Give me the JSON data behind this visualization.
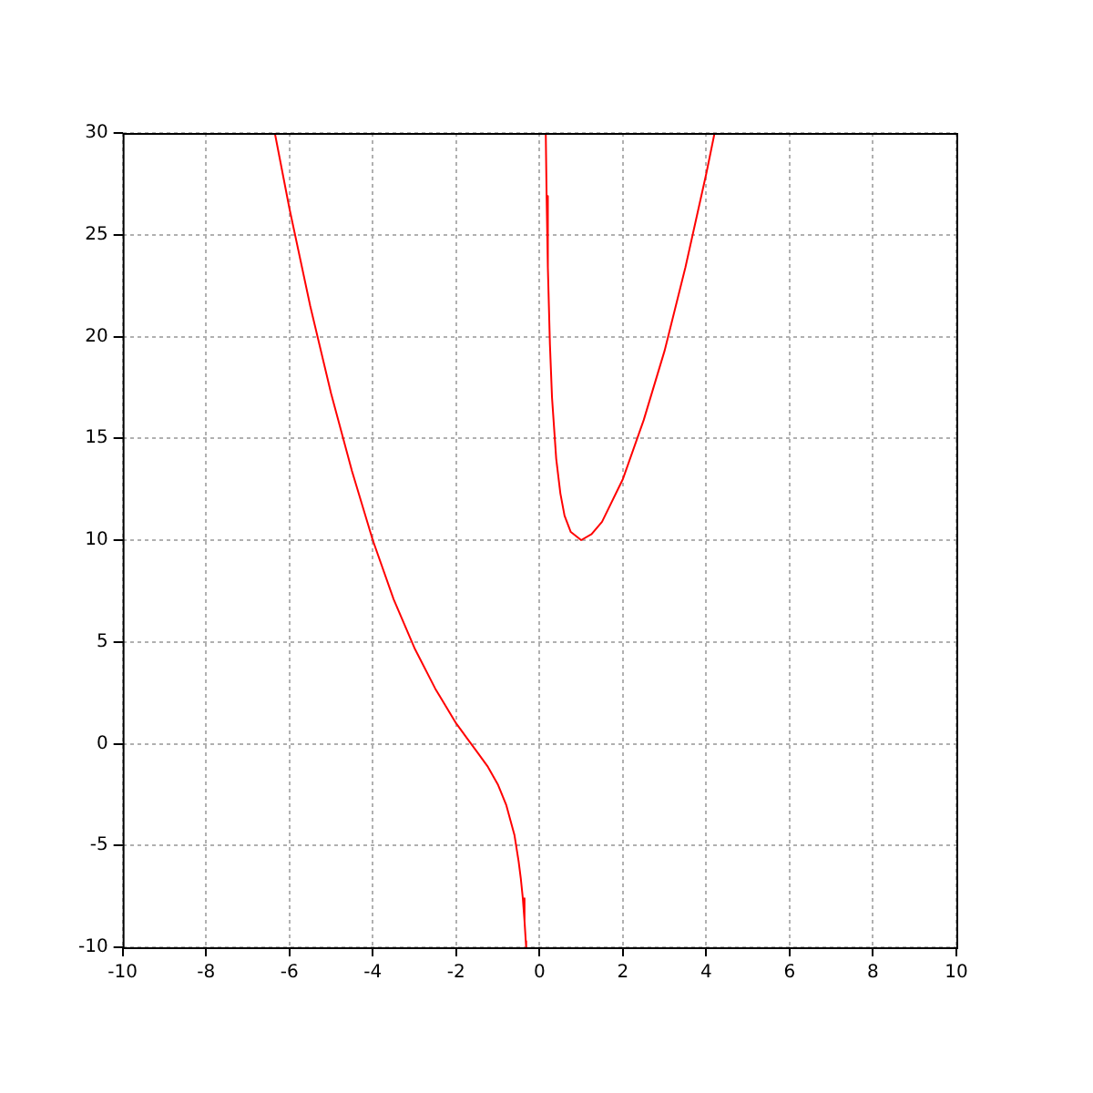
{
  "chart_data": {
    "type": "line",
    "series": [
      {
        "color": "#ff0000",
        "x": [
          -6.35,
          -6,
          -5.5,
          -5,
          -4.5,
          -4,
          -3.5,
          -3,
          -2.5,
          -2,
          -1.75,
          -1.5,
          -1.25,
          -1,
          -0.8,
          -0.6,
          -0.5,
          -0.45,
          -0.4,
          -0.36,
          -0.33,
          -0.32
        ],
        "values": [
          30.0,
          26.3,
          21.5,
          17.2,
          13.4,
          10.0,
          7.1,
          4.7,
          2.7,
          1.0,
          0.3,
          -0.4,
          -1.1,
          -2.0,
          -3.0,
          -4.5,
          -5.8,
          -6.6,
          -7.6,
          -8.7,
          -9.7,
          -10.0
        ]
      },
      {
        "color": "#ff0000",
        "x": [
          0.15,
          0.17,
          0.2,
          0.25,
          0.3,
          0.4,
          0.5,
          0.6,
          0.75,
          1,
          1.25,
          1.5,
          2,
          2.5,
          3,
          3.5,
          4,
          4.2
        ],
        "values": [
          30.0,
          26.9,
          23.4,
          19.6,
          17.0,
          14.0,
          12.3,
          11.2,
          10.4,
          10.0,
          10.3,
          10.9,
          13.0,
          15.9,
          19.3,
          23.4,
          28.0,
          30.0
        ]
      }
    ],
    "xlim": [
      -10,
      10
    ],
    "xticks": [
      -10,
      -8,
      -6,
      -4,
      -2,
      0,
      2,
      4,
      6,
      8,
      10
    ],
    "ylim": [
      -10,
      30
    ],
    "yticks": [
      -10,
      -5,
      0,
      5,
      10,
      15,
      20,
      25,
      30
    ],
    "grid": true,
    "marker": "none",
    "line_style": "solid",
    "legend": false
  }
}
